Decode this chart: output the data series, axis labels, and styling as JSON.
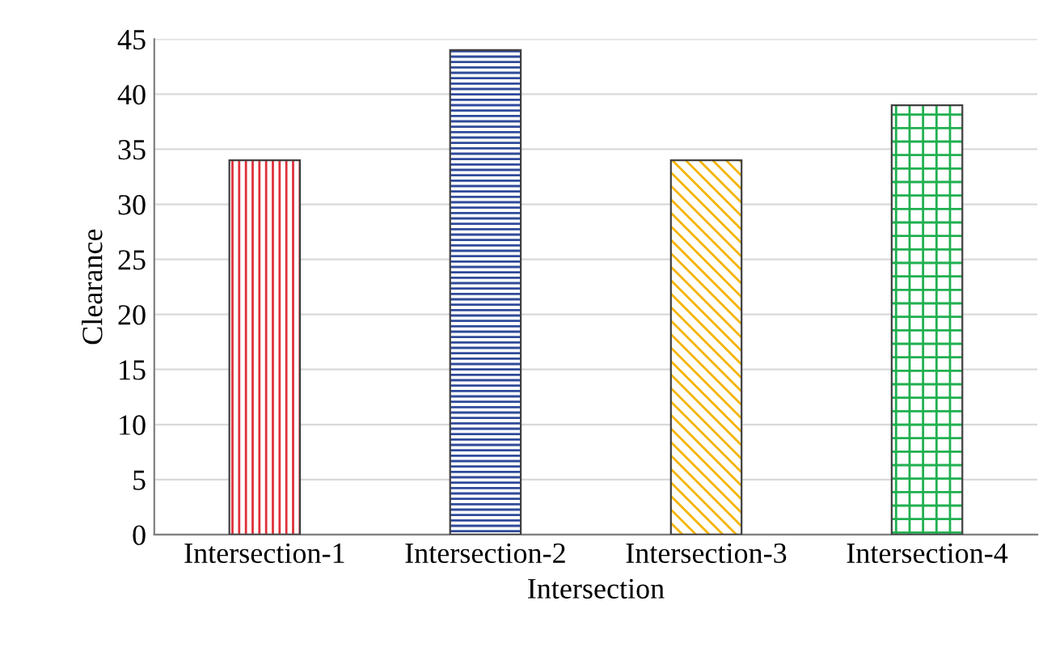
{
  "chart_data": {
    "type": "bar",
    "xlabel": "Intersection",
    "ylabel": "Clearance",
    "categories": [
      "Intersection-1",
      "Intersection-2",
      "Intersection-3",
      "Intersection-4"
    ],
    "values": [
      34,
      44,
      34,
      39
    ],
    "colors": [
      "#e0303a",
      "#2f4a9a",
      "#f5b400",
      "#20b050"
    ],
    "ylim": [
      0,
      45
    ],
    "yticks": [
      0,
      5,
      10,
      15,
      20,
      25,
      30,
      35,
      40,
      45
    ],
    "grid": "y"
  }
}
